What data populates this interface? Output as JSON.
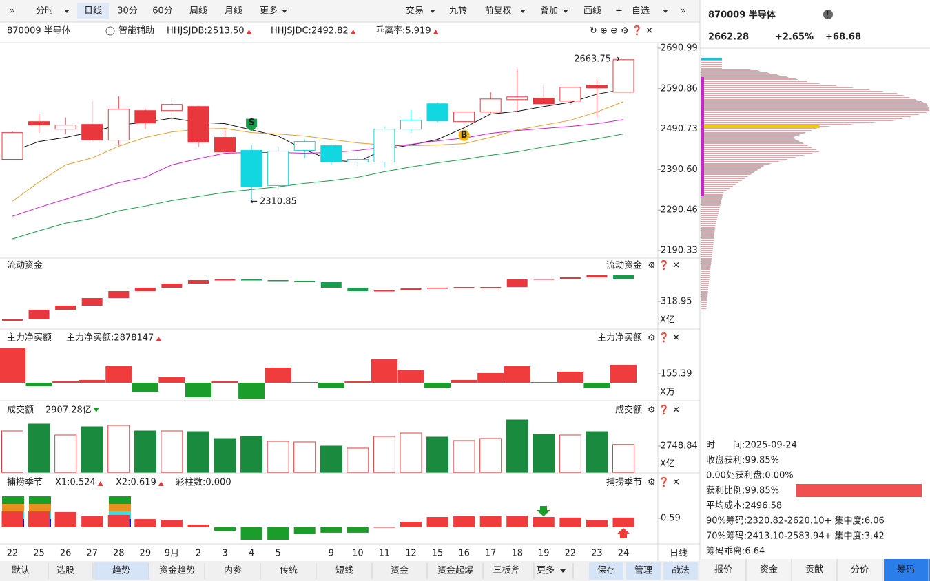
{
  "toolbar": {
    "left": [
      "分时",
      "日线",
      "30分",
      "60分",
      "周线",
      "月线",
      "更多"
    ],
    "right": [
      "交易",
      "九转",
      "前复权",
      "叠加",
      "画线",
      "自选"
    ]
  },
  "info_bar": {
    "symbol": "870009 半导体",
    "assist": "智能辅助",
    "indicators": [
      {
        "text": "HHJSJDB:2513.50",
        "color": "#e08a00"
      },
      {
        "text": "HHJSJDC:2492.82",
        "color": "#e8383d"
      },
      {
        "text": "乖离率:5.919",
        "color": "#e08a00"
      }
    ]
  },
  "price_chart": {
    "type": "candlestick",
    "categories": [
      "22",
      "25",
      "26",
      "27",
      "28",
      "29",
      "9月",
      "2",
      "3",
      "4",
      "5",
      null,
      "9",
      "10",
      "11",
      "12",
      "15",
      "16",
      "17",
      "18",
      "19",
      "22",
      "23",
      "24"
    ],
    "open": [
      2415.9,
      2509.3,
      2490.6,
      2502.5,
      2463.5,
      2536.5,
      2536.5,
      2546.7,
      2470.3,
      2438.0,
      2351.4,
      2438.0,
      2449.9,
      2409.1,
      2409.1,
      2490.6,
      2553.5,
      2509.3,
      2533.1,
      2563.6,
      2567.0,
      2560.2,
      2599.3,
      2582.3
    ],
    "close": [
      2482.1,
      2500.8,
      2500.8,
      2463.5,
      2539.9,
      2505.9,
      2551.8,
      2458.4,
      2434.6,
      2348.0,
      2436.3,
      2460.1,
      2409.1,
      2415.9,
      2490.6,
      2512.7,
      2511.0,
      2533.1,
      2565.3,
      2570.4,
      2553.5,
      2594.2,
      2592.5,
      2662.28
    ],
    "high": [
      2485.5,
      2528.0,
      2519.5,
      2561.9,
      2572.1,
      2541.6,
      2565.3,
      2548.4,
      2490.6,
      2451.6,
      2448.2,
      2465.1,
      2453.3,
      2422.7,
      2497.4,
      2538.2,
      2556.9,
      2533.1,
      2582.3,
      2640.0,
      2599.3,
      2594.2,
      2614.6,
      2663.75
    ],
    "low": [
      2415.9,
      2482.1,
      2478.7,
      2460.1,
      2449.9,
      2490.6,
      2512.7,
      2446.5,
      2432.9,
      2310.85,
      2341.2,
      2419.3,
      2402.3,
      2400.6,
      2395.5,
      2482.1,
      2507.6,
      2495.7,
      2529.7,
      2533.1,
      2550.1,
      2551.8,
      2519.5,
      2582.3
    ],
    "colors": [
      "#e8383d",
      "#e8383d",
      "#e8383d",
      "#e8383d",
      "#e8383d",
      "#e8383d",
      "#e8383d",
      "#e8383d",
      "#e8383d",
      "#12d6e0",
      "#12d6e0",
      "#12d6e0",
      "#12d6e0",
      "#12d6e0",
      "#12d6e0",
      "#12d6e0",
      "#12d6e0",
      "#e8383d",
      "#e8383d",
      "#e8383d",
      "#e8383d",
      "#e8383d",
      "#e8383d",
      "#e8383d"
    ],
    "hollow": [
      true,
      false,
      true,
      false,
      true,
      false,
      true,
      false,
      false,
      false,
      true,
      true,
      false,
      true,
      true,
      true,
      false,
      true,
      true,
      true,
      false,
      true,
      false,
      true
    ],
    "lines": [
      {
        "color": "#111111",
        "values": [
          2436.3,
          2460.1,
          2470.3,
          2483.8,
          2500.8,
          2507.6,
          2517.8,
          2507.6,
          2504.2,
          2488.9,
          2473.7,
          2439.7,
          2414.2,
          2409.1,
          2441.4,
          2451.6,
          2465.2,
          2494.0,
          2528.0,
          2534.8,
          2546.7,
          2556.9,
          2577.2,
          2589.1
        ]
      },
      {
        "color": "#e0a030",
        "values": [
          2312.3,
          2359.9,
          2402.3,
          2419.3,
          2448.2,
          2470.3,
          2483.8,
          2490.6,
          2492.3,
          2482.1,
          2478.7,
          2473.7,
          2465.2,
          2456.7,
          2451.6,
          2449.9,
          2451.6,
          2455.0,
          2470.3,
          2488.9,
          2500.8,
          2512.7,
          2533.1,
          2558.6
        ]
      },
      {
        "color": "#d020d0",
        "values": [
          2275.0,
          2297.1,
          2317.4,
          2337.8,
          2358.2,
          2371.8,
          2402.3,
          2417.6,
          2431.2,
          2432.9,
          2432.9,
          2431.2,
          2432.9,
          2438.0,
          2446.5,
          2453.3,
          2461.8,
          2468.6,
          2480.4,
          2487.2,
          2492.3,
          2497.4,
          2504.2,
          2514.4
        ]
      },
      {
        "color": "#1a9d4a",
        "values": [
          2219.0,
          2239.3,
          2258.0,
          2269.9,
          2288.6,
          2300.5,
          2314.0,
          2324.2,
          2334.4,
          2341.2,
          2348.0,
          2356.5,
          2363.3,
          2371.8,
          2385.4,
          2397.2,
          2407.4,
          2415.9,
          2426.1,
          2434.6,
          2446.5,
          2456.7,
          2466.9,
          2478.7
        ]
      }
    ],
    "ylim": [
      2171.6,
      2704.6
    ],
    "yticks": [
      2690.99,
      2590.86,
      2490.73,
      {
        "value": 2390.6,
        "label": "2390.60"
      },
      2290.46,
      2190.33
    ],
    "high_label": "2663.75",
    "low_label": "2310.85",
    "markers": [
      {
        "label": "S",
        "color": "#1a9d4a"
      },
      {
        "label": "B",
        "color": "#f5b300"
      }
    ]
  },
  "liquidity": {
    "title": "流动资金",
    "unit": "X亿",
    "ylim": [
      299.95,
      348.95
    ],
    "yticks": [
      318.95
    ],
    "up_color": "#e8383d",
    "down_color": "#1a9d4a",
    "values": [
      305.95,
      312.95,
      315.95,
      321.45,
      326.45,
      328.95,
      331.95,
      334.45,
      334.95,
      334.45,
      333.95,
      332.95,
      328.95,
      326.45,
      326.95,
      328.45,
      328.95,
      329.45,
      329.45,
      334.95,
      335.45,
      336.45,
      337.95,
      335.45
    ]
  },
  "main_net_buy": {
    "title": "主力净买额",
    "value_label": "主力净买额:2878147",
    "unit": "X万",
    "ylim": [
      -310.8,
      884.5
    ],
    "yticks": [
      155.39
    ],
    "up_color": "#f03c3c",
    "down_color": "#1a9d2a",
    "values": [
      609.6,
      -59.8,
      35.9,
      47.8,
      286.9,
      -155.4,
      95.6,
      -251.0,
      35.9,
      -274.9,
      263.0,
      12.0,
      -95.6,
      23.9,
      406.4,
      215.2,
      -83.7,
      47.8,
      167.3,
      286.9,
      12.0,
      191.2,
      -95.6,
      310.8
    ]
  },
  "turnover": {
    "title": "成交额",
    "value_label": "2907.28亿",
    "unit": "X亿",
    "ylim": [
      0,
      7089
    ],
    "yticks": [
      2748.84
    ],
    "up_color": "#e8383d",
    "down_color": "#1a8a3f",
    "values": [
      4340,
      5064,
      3906,
      4774,
      4919,
      4340,
      4340,
      4268,
      3545,
      3762,
      3255,
      3183,
      2749,
      2532,
      3762,
      4123,
      3689,
      3328,
      3545,
      5498,
      3979,
      3906,
      4268,
      2907.28
    ],
    "colors": [
      "#e8383d",
      "#1a8a3f",
      "#e8383d",
      "#1a8a3f",
      "#e8383d",
      "#1a8a3f",
      "#e8383d",
      "#1a8a3f",
      "#1a8a3f",
      "#1a8a3f",
      "#e8383d",
      "#e8383d",
      "#1a8a3f",
      "#e8383d",
      "#e8383d",
      "#e8383d",
      "#1a8a3f",
      "#e8383d",
      "#e8383d",
      "#1a8a3f",
      "#1a8a3f",
      "#e8383d",
      "#1a8a3f",
      "#e8383d"
    ]
  },
  "fishing": {
    "title": "捕捞季节",
    "labels": [
      {
        "text": "X1:0.524",
        "color": "#e08a00"
      },
      {
        "text": "X2:0.619",
        "color": "#d020d0"
      },
      {
        "text": "彩柱数:0.000",
        "color": "#1a9d2a"
      }
    ],
    "ylim": [
      -1.09,
      2.45
    ],
    "yticks": [
      0.59
    ],
    "up_color": "#f03c3c",
    "down_color": "#1a9d2a",
    "values": [
      1.04,
      1.04,
      1.0,
      0.77,
      0.82,
      0.54,
      0.5,
      0.18,
      -0.23,
      -0.82,
      -0.82,
      -0.45,
      -0.36,
      -0.36,
      0.02,
      0.36,
      0.68,
      0.73,
      0.73,
      0.77,
      0.68,
      0.64,
      0.5,
      0.64
    ]
  },
  "period_label": "日线",
  "bottom_tabs": [
    "默认",
    "选股",
    "趋势",
    "资金趋势",
    "内参",
    "传统",
    "短线",
    "资金",
    "资金起爆",
    "三板斧",
    "更多"
  ],
  "bottom_actions": [
    "保存",
    "管理",
    "战法"
  ],
  "quote": {
    "name": "870009 半导体",
    "price": "2662.28",
    "change_pct": "+2.65%",
    "change": "+68.68"
  },
  "chip_info": [
    "时　　间:2025-09-24",
    "收盘获利:99.85%",
    "0.00处获利盘:0.00%",
    "获利比例:99.85%",
    "平均成本:2496.58",
    "90%筹码:2320.82-2620.10+ 集中度:6.06",
    "70%筹码:2413.10-2583.94+ 集中度:3.42",
    "筹码乖离:6.64"
  ],
  "side_tabs": [
    "报价",
    "资金",
    "贡献",
    "分价",
    "筹码"
  ]
}
